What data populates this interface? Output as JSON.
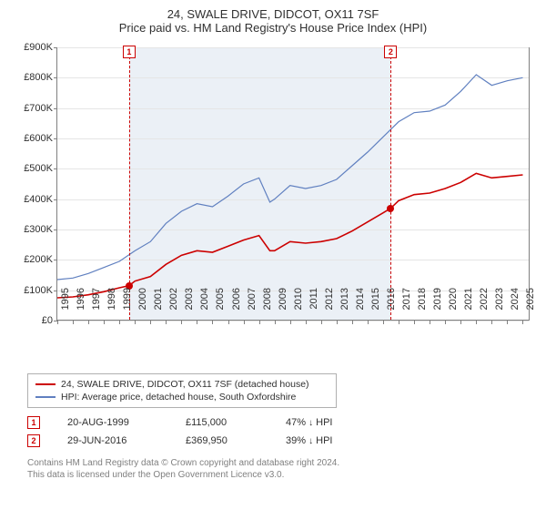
{
  "title": "24, SWALE DRIVE, DIDCOT, OX11 7SF",
  "subtitle": "Price paid vs. HM Land Registry's House Price Index (HPI)",
  "chart": {
    "type": "line",
    "background_color": "#ffffff",
    "grid_color": "#e5e5e5",
    "axis_color": "#808080",
    "shade_color": "#e9eef5",
    "x_years": [
      1995,
      1996,
      1997,
      1998,
      1999,
      2000,
      2001,
      2002,
      2003,
      2004,
      2005,
      2006,
      2007,
      2008,
      2009,
      2010,
      2011,
      2012,
      2013,
      2014,
      2015,
      2016,
      2017,
      2018,
      2019,
      2020,
      2021,
      2022,
      2023,
      2024,
      2025
    ],
    "x_range": [
      1995,
      2025.5
    ],
    "y_range": [
      0,
      900
    ],
    "y_ticks": [
      0,
      100,
      200,
      300,
      400,
      500,
      600,
      700,
      800,
      900
    ],
    "y_tick_labels": [
      "£0",
      "£100K",
      "£200K",
      "£300K",
      "£400K",
      "£500K",
      "£600K",
      "£700K",
      "£800K",
      "£900K"
    ],
    "shaded_band": [
      1999.63,
      2016.49
    ],
    "series": [
      {
        "name": "property",
        "label": "24, SWALE DRIVE, DIDCOT, OX11 7SF (detached house)",
        "color": "#cc0000",
        "width": 1.6,
        "points": [
          [
            1995,
            75
          ],
          [
            1996,
            78
          ],
          [
            1997,
            85
          ],
          [
            1998,
            95
          ],
          [
            1999,
            108
          ],
          [
            1999.63,
            115
          ],
          [
            2000,
            130
          ],
          [
            2001,
            145
          ],
          [
            2002,
            185
          ],
          [
            2003,
            215
          ],
          [
            2004,
            230
          ],
          [
            2005,
            225
          ],
          [
            2006,
            245
          ],
          [
            2007,
            265
          ],
          [
            2008,
            280
          ],
          [
            2008.7,
            230
          ],
          [
            2009,
            230
          ],
          [
            2010,
            260
          ],
          [
            2011,
            255
          ],
          [
            2012,
            260
          ],
          [
            2013,
            270
          ],
          [
            2014,
            295
          ],
          [
            2015,
            325
          ],
          [
            2016,
            355
          ],
          [
            2016.49,
            370
          ],
          [
            2017,
            395
          ],
          [
            2018,
            415
          ],
          [
            2019,
            420
          ],
          [
            2020,
            435
          ],
          [
            2021,
            455
          ],
          [
            2022,
            485
          ],
          [
            2023,
            470
          ],
          [
            2024,
            475
          ],
          [
            2025,
            480
          ]
        ]
      },
      {
        "name": "hpi",
        "label": "HPI: Average price, detached house, South Oxfordshire",
        "color": "#6080c0",
        "width": 1.2,
        "points": [
          [
            1995,
            135
          ],
          [
            1996,
            140
          ],
          [
            1997,
            155
          ],
          [
            1998,
            175
          ],
          [
            1999,
            195
          ],
          [
            2000,
            230
          ],
          [
            2001,
            260
          ],
          [
            2002,
            320
          ],
          [
            2003,
            360
          ],
          [
            2004,
            385
          ],
          [
            2005,
            375
          ],
          [
            2006,
            410
          ],
          [
            2007,
            450
          ],
          [
            2008,
            470
          ],
          [
            2008.7,
            390
          ],
          [
            2009,
            400
          ],
          [
            2010,
            445
          ],
          [
            2011,
            435
          ],
          [
            2012,
            445
          ],
          [
            2013,
            465
          ],
          [
            2014,
            510
          ],
          [
            2015,
            555
          ],
          [
            2016,
            605
          ],
          [
            2017,
            655
          ],
          [
            2018,
            685
          ],
          [
            2019,
            690
          ],
          [
            2020,
            710
          ],
          [
            2021,
            755
          ],
          [
            2022,
            810
          ],
          [
            2023,
            775
          ],
          [
            2024,
            790
          ],
          [
            2025,
            800
          ]
        ]
      }
    ],
    "sale_markers": [
      {
        "idx": "1",
        "year": 1999.63,
        "value": 115
      },
      {
        "idx": "2",
        "year": 2016.49,
        "value": 370
      }
    ]
  },
  "legend": {
    "items": [
      {
        "color": "#cc0000",
        "label": "24, SWALE DRIVE, DIDCOT, OX11 7SF (detached house)"
      },
      {
        "color": "#6080c0",
        "label": "HPI: Average price, detached house, South Oxfordshire"
      }
    ]
  },
  "sales": [
    {
      "idx": "1",
      "date": "20-AUG-1999",
      "price": "£115,000",
      "delta_pct": "47%",
      "delta_dir": "↓",
      "delta_label": "HPI"
    },
    {
      "idx": "2",
      "date": "29-JUN-2016",
      "price": "£369,950",
      "delta_pct": "39%",
      "delta_dir": "↓",
      "delta_label": "HPI"
    }
  ],
  "attribution": {
    "line1": "Contains HM Land Registry data © Crown copyright and database right 2024.",
    "line2": "This data is licensed under the Open Government Licence v3.0."
  }
}
